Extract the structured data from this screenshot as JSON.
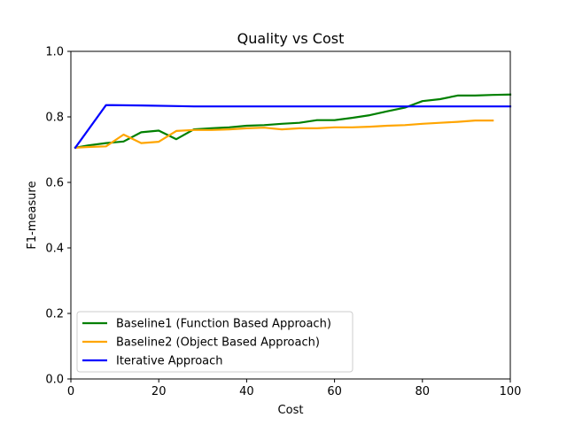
{
  "chart_data": {
    "type": "line",
    "title": "Quality vs Cost",
    "xlabel": "Cost",
    "ylabel": "F1-measure",
    "xlim": [
      0,
      100
    ],
    "ylim": [
      0,
      1.0
    ],
    "xticks": [
      0,
      20,
      40,
      60,
      80,
      100
    ],
    "yticks": [
      0.0,
      0.2,
      0.4,
      0.6,
      0.8,
      1.0
    ],
    "xtick_labels": [
      "0",
      "20",
      "40",
      "60",
      "80",
      "100"
    ],
    "ytick_labels": [
      "0.0",
      "0.2",
      "0.4",
      "0.6",
      "0.8",
      "1.0"
    ],
    "grid": false,
    "legend_position": "lower-left",
    "series": [
      {
        "name": "Baseline1 (Function Based Approach)",
        "color": "#008000",
        "x": [
          1,
          4,
          8,
          12,
          16,
          20,
          24,
          28,
          32,
          36,
          40,
          44,
          48,
          52,
          56,
          60,
          64,
          68,
          72,
          76,
          80,
          84,
          88,
          92,
          96,
          100
        ],
        "y": [
          0.706,
          0.713,
          0.72,
          0.725,
          0.753,
          0.758,
          0.732,
          0.762,
          0.765,
          0.768,
          0.773,
          0.775,
          0.779,
          0.782,
          0.79,
          0.79,
          0.797,
          0.805,
          0.817,
          0.828,
          0.848,
          0.854,
          0.865,
          0.865,
          0.867,
          0.868
        ]
      },
      {
        "name": "Baseline2 (Object Based Approach)",
        "color": "#ffa500",
        "x": [
          1,
          4,
          8,
          12,
          16,
          20,
          24,
          28,
          32,
          36,
          40,
          44,
          48,
          52,
          56,
          60,
          64,
          68,
          72,
          76,
          80,
          84,
          88,
          92,
          96
        ],
        "y": [
          0.706,
          0.708,
          0.71,
          0.746,
          0.72,
          0.724,
          0.757,
          0.76,
          0.76,
          0.762,
          0.765,
          0.767,
          0.762,
          0.765,
          0.765,
          0.768,
          0.768,
          0.77,
          0.773,
          0.775,
          0.779,
          0.782,
          0.785,
          0.789,
          0.789
        ]
      },
      {
        "name": "Iterative Approach",
        "color": "#0000ff",
        "x": [
          1,
          8,
          16,
          24,
          28,
          40,
          60,
          80,
          100
        ],
        "y": [
          0.706,
          0.836,
          0.835,
          0.833,
          0.832,
          0.832,
          0.832,
          0.832,
          0.832
        ]
      }
    ]
  }
}
